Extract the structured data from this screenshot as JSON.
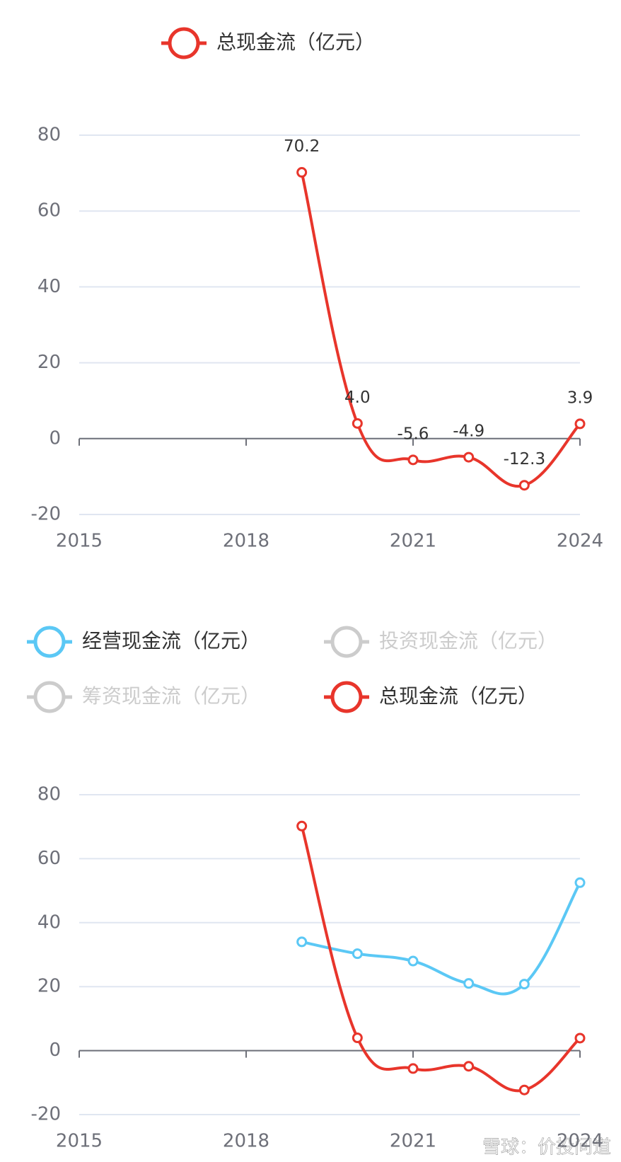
{
  "chart_data": [
    {
      "type": "line",
      "x": [
        2019,
        2020,
        2021,
        2022,
        2023,
        2024
      ],
      "xlim": [
        2015,
        2024
      ],
      "xticks": [
        2015,
        2018,
        2021,
        2024
      ],
      "ylim": [
        -20,
        80
      ],
      "yticks": [
        -20,
        0,
        20,
        40,
        60,
        80
      ],
      "grid": true,
      "series": [
        {
          "name": "总现金流（亿元）",
          "color": "#e8352b",
          "values": [
            70.2,
            4.0,
            -5.6,
            -4.9,
            -12.3,
            3.9
          ],
          "value_labels": [
            "70.2",
            "4.0",
            "-5.6",
            "-4.9",
            "-12.3",
            "3.9"
          ]
        }
      ]
    },
    {
      "type": "line",
      "x": [
        2019,
        2020,
        2021,
        2022,
        2023,
        2024
      ],
      "xlim": [
        2015,
        2024
      ],
      "xticks": [
        2015,
        2018,
        2021,
        2024
      ],
      "ylim": [
        -20,
        80
      ],
      "yticks": [
        -20,
        0,
        20,
        40,
        60,
        80
      ],
      "grid": true,
      "series": [
        {
          "name": "经营现金流（亿元）",
          "color": "#5bc8f5",
          "values": [
            34,
            30.3,
            28,
            21,
            20.8,
            52.5
          ]
        },
        {
          "name": "投资现金流（亿元）",
          "color": "#cccccc",
          "hidden": true
        },
        {
          "name": "筹资现金流（亿元）",
          "color": "#cccccc",
          "hidden": true
        },
        {
          "name": "总现金流（亿元）",
          "color": "#e8352b",
          "values": [
            70.2,
            4.0,
            -5.6,
            -4.9,
            -12.3,
            3.9
          ]
        }
      ]
    }
  ],
  "watermark": "雪球：价投问道"
}
